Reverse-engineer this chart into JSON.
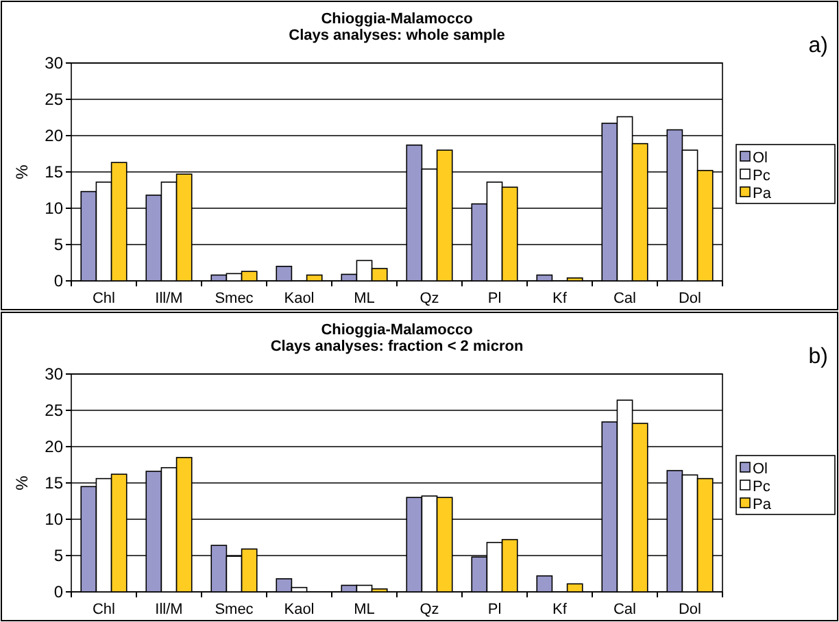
{
  "chart_data": [
    {
      "type": "bar",
      "title": "Chioggia-Malamocco",
      "subtitle": "Clays analyses: whole sample",
      "ylabel": "%",
      "annotations": [
        "a)"
      ],
      "categories": [
        "Chl",
        "Ill/M",
        "Smec",
        "Kaol",
        "ML",
        "Qz",
        "Pl",
        "Kf",
        "Cal",
        "Dol"
      ],
      "series": [
        {
          "name": "Ol",
          "color": "#9999cc",
          "values": [
            12.3,
            11.8,
            0.8,
            2.0,
            0.9,
            18.7,
            10.6,
            0.8,
            21.7,
            20.8
          ]
        },
        {
          "name": "Pc",
          "color": "#ffffff",
          "values": [
            13.6,
            13.6,
            1.0,
            0,
            2.8,
            15.4,
            13.6,
            0,
            22.6,
            18.0
          ]
        },
        {
          "name": "Pa",
          "color": "#ffcc22",
          "values": [
            16.3,
            14.7,
            1.3,
            0.8,
            1.7,
            18.0,
            12.9,
            0.4,
            18.9,
            15.2
          ]
        }
      ],
      "ylim": [
        0,
        30
      ],
      "yticks": [
        0,
        5,
        10,
        15,
        20,
        25,
        30
      ],
      "grid": "y",
      "legend": "right"
    },
    {
      "type": "bar",
      "title": "Chioggia-Malamocco",
      "subtitle": "Clays analyses: fraction < 2 micron",
      "ylabel": "%",
      "annotations": [
        "b)"
      ],
      "categories": [
        "Chl",
        "Ill/M",
        "Smec",
        "Kaol",
        "ML",
        "Qz",
        "Pl",
        "Kf",
        "Cal",
        "Dol"
      ],
      "series": [
        {
          "name": "Ol",
          "color": "#9999cc",
          "values": [
            14.5,
            16.6,
            6.4,
            1.8,
            0.9,
            13.0,
            4.8,
            2.2,
            23.4,
            16.7
          ]
        },
        {
          "name": "Pc",
          "color": "#ffffff",
          "values": [
            15.6,
            17.1,
            4.9,
            0.6,
            0.9,
            13.2,
            6.8,
            0,
            26.4,
            16.1
          ]
        },
        {
          "name": "Pa",
          "color": "#ffcc22",
          "values": [
            16.2,
            18.5,
            5.9,
            0,
            0.4,
            13.0,
            7.2,
            1.1,
            23.2,
            15.6
          ]
        }
      ],
      "ylim": [
        0,
        30
      ],
      "yticks": [
        0,
        5,
        10,
        15,
        20,
        25,
        30
      ],
      "grid": "y",
      "legend": "right"
    }
  ]
}
